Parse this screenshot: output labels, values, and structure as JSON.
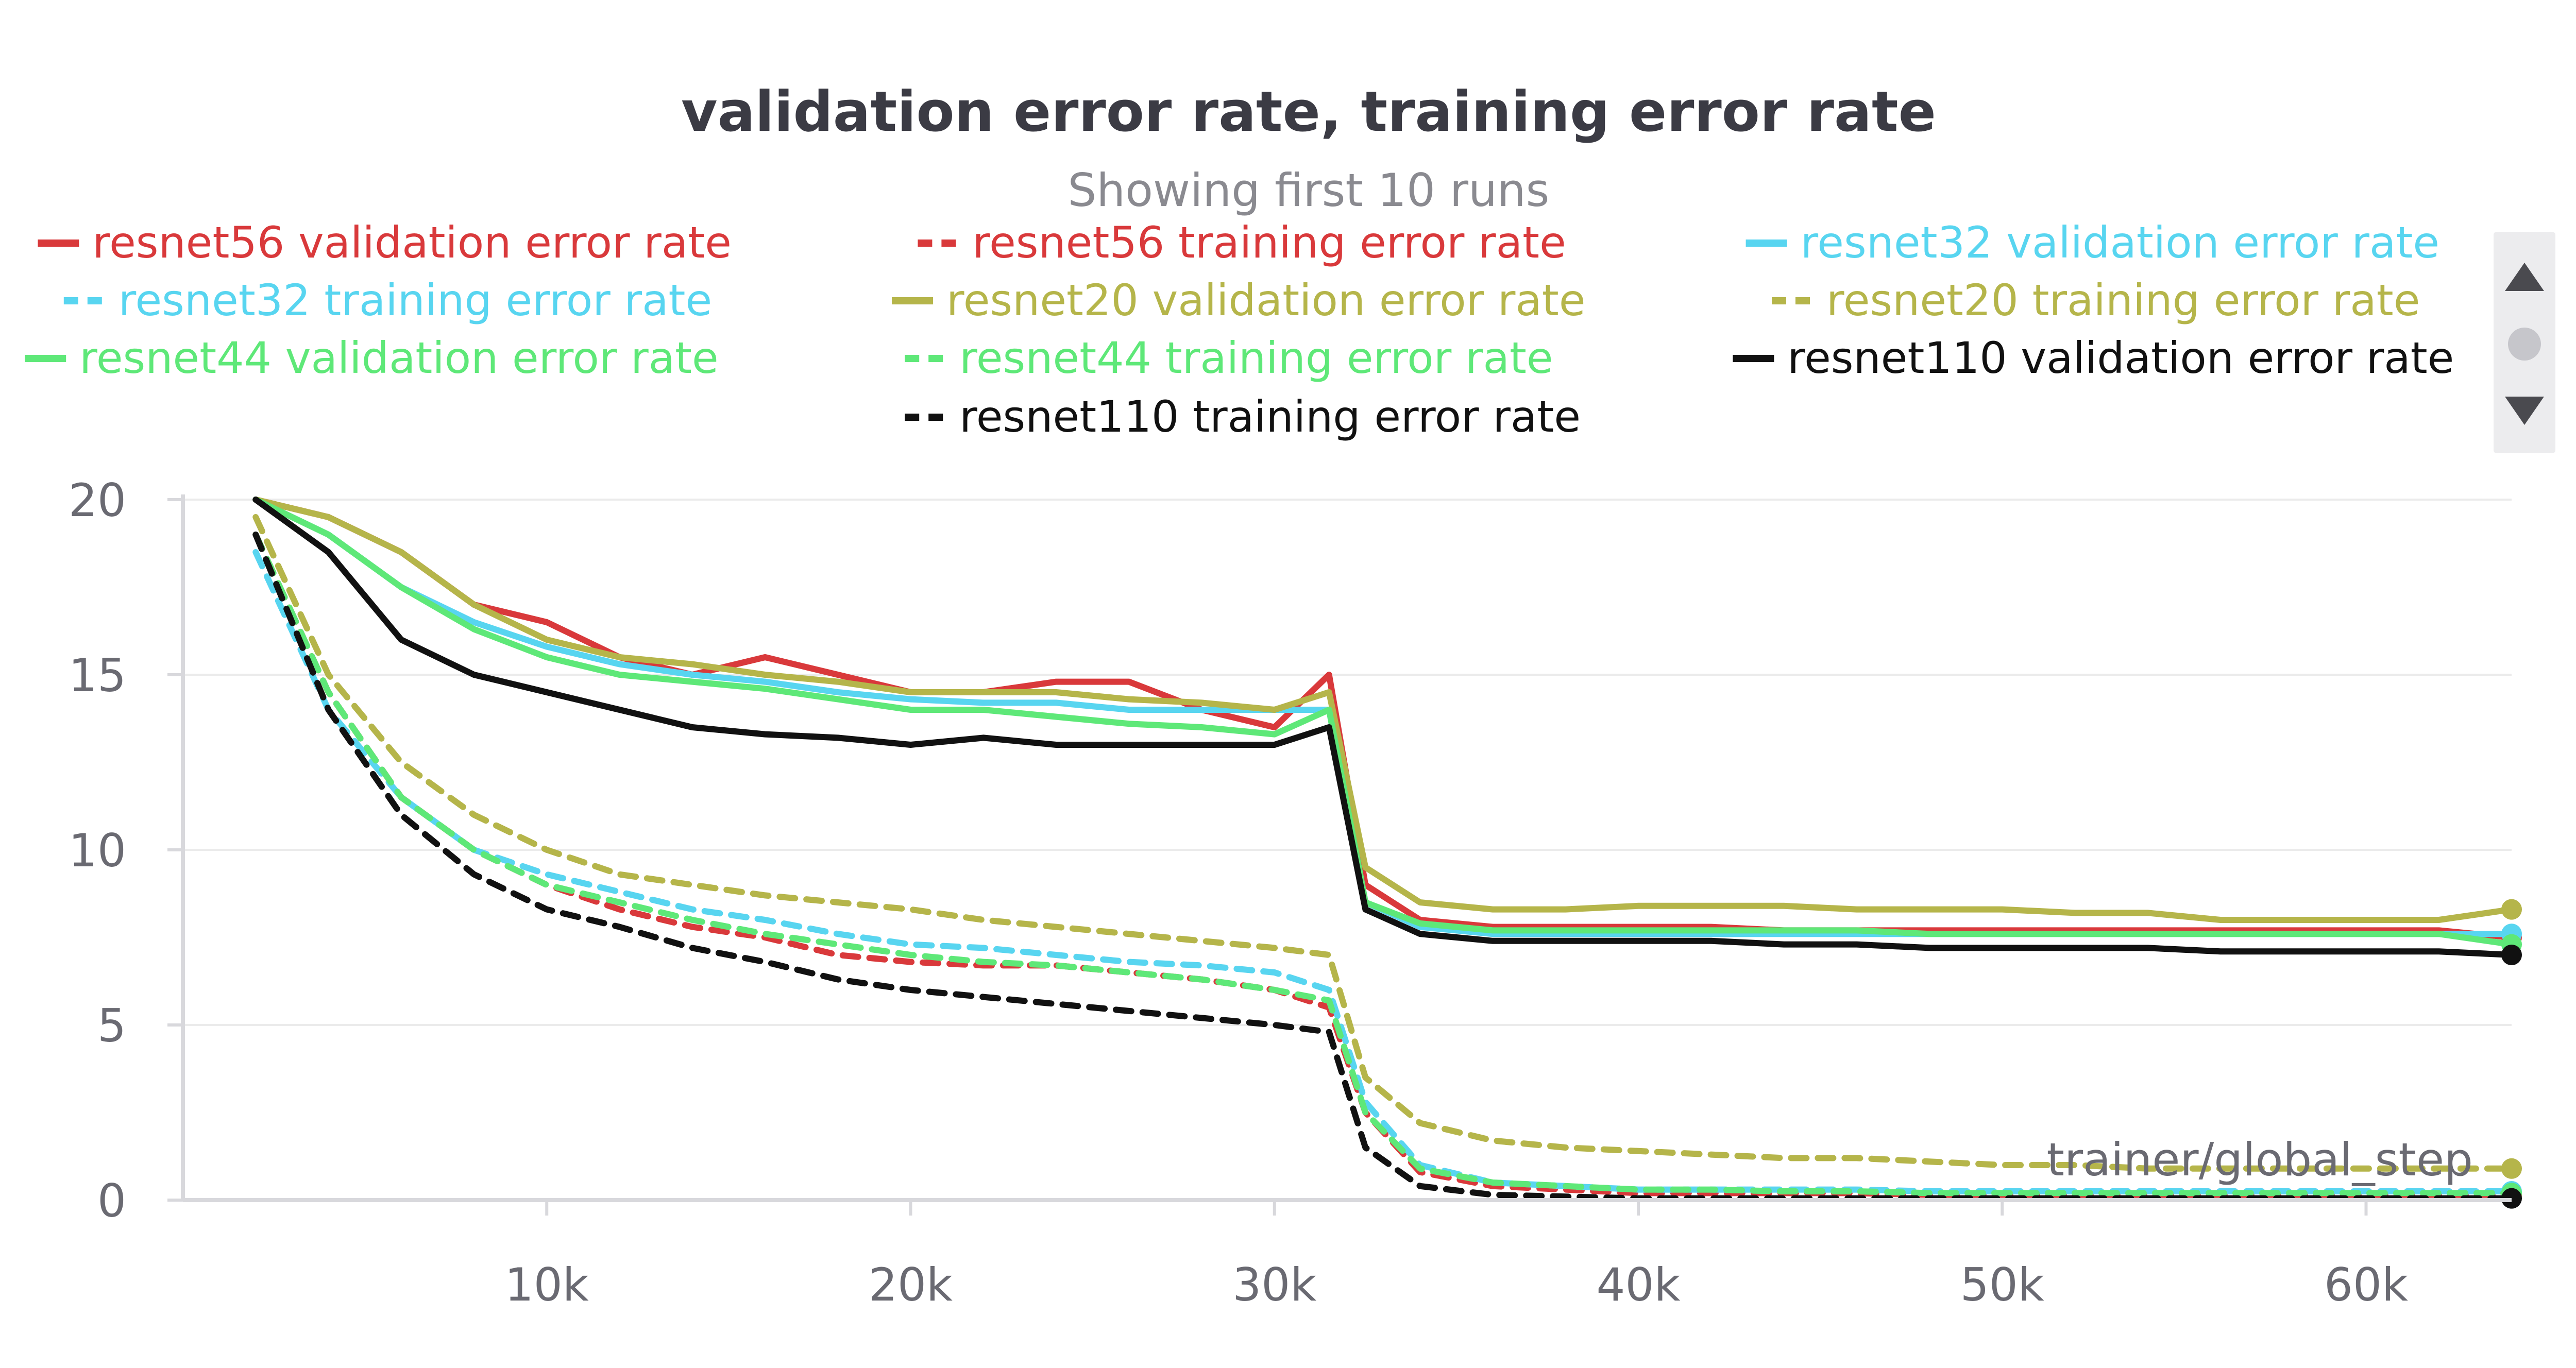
{
  "chart_data": {
    "type": "line",
    "title": "validation error rate, training error rate",
    "subtitle": "Showing first 10 runs",
    "xlabel": "trainer/global_step",
    "ylabel": "",
    "xlim": [
      0,
      64000
    ],
    "ylim": [
      0,
      20
    ],
    "x_ticks": [
      "10k",
      "20k",
      "30k",
      "40k",
      "50k",
      "60k"
    ],
    "y_ticks": [
      "0",
      "5",
      "10",
      "15",
      "20"
    ],
    "grid": true,
    "legend_position": "top",
    "x": [
      2000,
      4000,
      6000,
      8000,
      10000,
      12000,
      14000,
      16000,
      18000,
      20000,
      22000,
      24000,
      26000,
      28000,
      30000,
      31500,
      32500,
      34000,
      36000,
      38000,
      40000,
      42000,
      44000,
      46000,
      48000,
      50000,
      52000,
      54000,
      56000,
      58000,
      60000,
      62000,
      64000
    ],
    "series": [
      {
        "name": "resnet56 validation error rate",
        "color": "#d9393b",
        "dash": "solid",
        "values": [
          21,
          19.5,
          18.5,
          17.0,
          16.5,
          15.5,
          15.0,
          15.5,
          15.0,
          14.5,
          14.5,
          14.8,
          14.8,
          14.0,
          13.5,
          15.0,
          9.0,
          8.0,
          7.8,
          7.8,
          7.8,
          7.8,
          7.7,
          7.7,
          7.7,
          7.7,
          7.7,
          7.7,
          7.7,
          7.7,
          7.7,
          7.7,
          7.5
        ]
      },
      {
        "name": "resnet56 training error rate",
        "color": "#d9393b",
        "dash": "dashed",
        "values": [
          19,
          14.5,
          11.5,
          10.0,
          9.0,
          8.3,
          7.8,
          7.5,
          7.0,
          6.8,
          6.7,
          6.7,
          6.5,
          6.3,
          6.0,
          5.5,
          2.5,
          0.8,
          0.4,
          0.3,
          0.2,
          0.2,
          0.2,
          0.2,
          0.15,
          0.15,
          0.15,
          0.15,
          0.15,
          0.15,
          0.15,
          0.15,
          0.15
        ]
      },
      {
        "name": "resnet32 validation error rate",
        "color": "#58d5f0",
        "dash": "solid",
        "values": [
          20.5,
          19.0,
          17.5,
          16.5,
          15.8,
          15.3,
          15.0,
          14.8,
          14.5,
          14.3,
          14.2,
          14.2,
          14.0,
          14.0,
          14.0,
          14.0,
          8.5,
          7.8,
          7.6,
          7.6,
          7.6,
          7.6,
          7.6,
          7.6,
          7.6,
          7.6,
          7.6,
          7.6,
          7.6,
          7.6,
          7.6,
          7.6,
          7.6
        ]
      },
      {
        "name": "resnet32 training error rate",
        "color": "#58d5f0",
        "dash": "dashed",
        "values": [
          18.5,
          14.0,
          11.5,
          10.0,
          9.3,
          8.8,
          8.3,
          8.0,
          7.6,
          7.3,
          7.2,
          7.0,
          6.8,
          6.7,
          6.5,
          6.0,
          2.8,
          1.0,
          0.5,
          0.4,
          0.3,
          0.3,
          0.3,
          0.3,
          0.25,
          0.25,
          0.25,
          0.25,
          0.25,
          0.25,
          0.25,
          0.25,
          0.25
        ]
      },
      {
        "name": "resnet20 validation error rate",
        "color": "#b5b54a",
        "dash": "solid",
        "values": [
          21,
          19.5,
          18.5,
          17.0,
          16.0,
          15.5,
          15.3,
          15.0,
          14.8,
          14.5,
          14.5,
          14.5,
          14.3,
          14.2,
          14.0,
          14.5,
          9.5,
          8.5,
          8.3,
          8.3,
          8.4,
          8.4,
          8.4,
          8.3,
          8.3,
          8.3,
          8.2,
          8.2,
          8.0,
          8.0,
          8.0,
          8.0,
          8.3
        ]
      },
      {
        "name": "resnet20 training error rate",
        "color": "#b5b54a",
        "dash": "dashed",
        "values": [
          19.5,
          15.0,
          12.5,
          11.0,
          10.0,
          9.3,
          9.0,
          8.7,
          8.5,
          8.3,
          8.0,
          7.8,
          7.6,
          7.4,
          7.2,
          7.0,
          3.5,
          2.2,
          1.7,
          1.5,
          1.4,
          1.3,
          1.2,
          1.2,
          1.1,
          1.0,
          1.0,
          0.9,
          0.9,
          0.9,
          0.9,
          0.9,
          0.9
        ]
      },
      {
        "name": "resnet44 validation error rate",
        "color": "#5ee878",
        "dash": "solid",
        "values": [
          20.5,
          19.0,
          17.5,
          16.3,
          15.5,
          15.0,
          14.8,
          14.6,
          14.3,
          14.0,
          14.0,
          13.8,
          13.6,
          13.5,
          13.3,
          14.0,
          8.5,
          7.9,
          7.7,
          7.7,
          7.7,
          7.7,
          7.7,
          7.7,
          7.6,
          7.6,
          7.6,
          7.6,
          7.6,
          7.6,
          7.6,
          7.6,
          7.3
        ]
      },
      {
        "name": "resnet44 training error rate",
        "color": "#5ee878",
        "dash": "dashed",
        "values": [
          19,
          14.5,
          11.5,
          10.0,
          9.0,
          8.5,
          8.0,
          7.6,
          7.3,
          7.0,
          6.8,
          6.7,
          6.5,
          6.3,
          6.0,
          5.7,
          2.5,
          0.9,
          0.5,
          0.4,
          0.3,
          0.3,
          0.25,
          0.25,
          0.2,
          0.2,
          0.2,
          0.2,
          0.2,
          0.2,
          0.2,
          0.2,
          0.2
        ]
      },
      {
        "name": "resnet110 validation error rate",
        "color": "#111111",
        "dash": "solid",
        "values": [
          20,
          18.5,
          16.0,
          15.0,
          14.5,
          14.0,
          13.5,
          13.3,
          13.2,
          13.0,
          13.2,
          13.0,
          13.0,
          13.0,
          13.0,
          13.5,
          8.3,
          7.6,
          7.4,
          7.4,
          7.4,
          7.4,
          7.3,
          7.3,
          7.2,
          7.2,
          7.2,
          7.2,
          7.1,
          7.1,
          7.1,
          7.1,
          7.0
        ]
      },
      {
        "name": "resnet110 training error rate",
        "color": "#111111",
        "dash": "dashed",
        "values": [
          19,
          14.0,
          11.0,
          9.3,
          8.3,
          7.8,
          7.2,
          6.8,
          6.3,
          6.0,
          5.8,
          5.6,
          5.4,
          5.2,
          5.0,
          4.8,
          1.5,
          0.4,
          0.15,
          0.1,
          0.05,
          0.05,
          0.05,
          0.05,
          0.05,
          0.05,
          0.05,
          0.05,
          0.05,
          0.05,
          0.05,
          0.05,
          0.05
        ]
      }
    ]
  },
  "colors": {
    "grid": "#ebebeb",
    "axis": "#d8d8dc",
    "title": "#3b3b44",
    "subtitle": "#8a8a90",
    "tick": "#6a6a72",
    "legend_scroll_bg": "#ececee",
    "legend_scroll_arrow": "#4a4a4f"
  },
  "legend_scroll": {
    "up_icon": "triangle-up-icon",
    "dot_icon": "circle-icon",
    "down_icon": "triangle-down-icon"
  }
}
